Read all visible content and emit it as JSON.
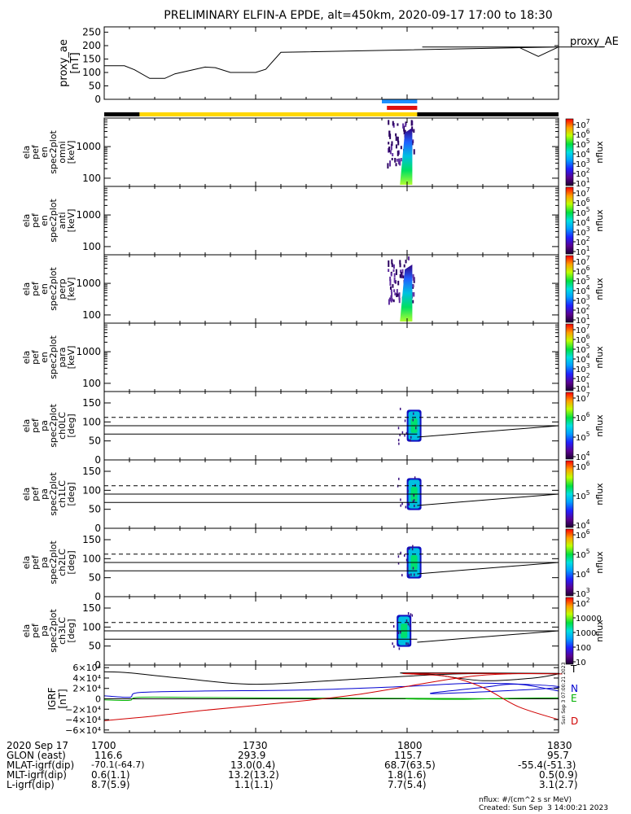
{
  "header": {
    "title": "PRELIMINARY ELFIN-A EPDE, alt=450km, 2020-09-17 17:00 to 18:30"
  },
  "colors": {
    "state_bar_sunlit": "#FFD700",
    "state_bar_eclipse": "#000000",
    "science_zone_blue": "#1E90FF",
    "science_zone_red": "#E01010",
    "igrf_T": "#000000",
    "igrf_N": "#0000D0",
    "igrf_E": "#00B000",
    "igrf_D": "#D00000"
  },
  "chart_data": [
    {
      "type": "line",
      "panel": "proxy_ae",
      "ylabel": [
        "proxy_ae",
        "[nT]"
      ],
      "legend": "proxy_AE",
      "ylim": [
        0,
        270
      ],
      "yticks": [
        "250",
        "200",
        "150",
        "100",
        "50",
        "0"
      ],
      "x": [
        1700,
        1704,
        1706,
        1709,
        1712,
        1714,
        1720,
        1722,
        1725,
        1730,
        1732,
        1735,
        1790,
        1794,
        1799,
        1803,
        1807,
        1812,
        1822,
        1826,
        1830
      ],
      "values": [
        125,
        125,
        110,
        78,
        78,
        95,
        120,
        118,
        100,
        100,
        112,
        175,
        195,
        195,
        195,
        195,
        195,
        195,
        195,
        160,
        195
      ]
    },
    {
      "type": "heatmap",
      "panel": "ela_pef_en_spec2plot_omni",
      "ylabel": [
        "ela",
        "pef",
        "en",
        "spec2plot",
        "omni",
        "[keV]"
      ],
      "yscale": "log",
      "yticks": [
        "1000",
        "100"
      ],
      "colorbar_label": "nflux",
      "colorbar_ticks": [
        "10^7",
        "10^6",
        "10^5",
        "10^4",
        "10^3",
        "10^2",
        "10^1"
      ],
      "active_x_range": [
        1756,
        1802
      ]
    },
    {
      "type": "heatmap",
      "panel": "ela_pef_en_spec2plot_anti",
      "ylabel": [
        "ela",
        "pef",
        "en",
        "spec2plot",
        "anti",
        "[keV]"
      ],
      "yscale": "log",
      "yticks": [
        "1000",
        "100"
      ],
      "colorbar_label": "nflux",
      "colorbar_ticks": [
        "10^7",
        "10^6",
        "10^5",
        "10^4",
        "10^3",
        "10^2",
        "10^1"
      ],
      "active_x_range": null
    },
    {
      "type": "heatmap",
      "panel": "ela_pef_en_spec2plot_perp",
      "ylabel": [
        "ela",
        "pef",
        "en",
        "spec2plot",
        "perp",
        "[keV]"
      ],
      "yscale": "log",
      "yticks": [
        "1000",
        "100"
      ],
      "colorbar_label": "nflux",
      "colorbar_ticks": [
        "10^7",
        "10^6",
        "10^5",
        "10^4",
        "10^3",
        "10^2",
        "10^1"
      ],
      "active_x_range": [
        1756,
        1802
      ]
    },
    {
      "type": "heatmap",
      "panel": "ela_pef_en_spec2plot_para",
      "ylabel": [
        "ela",
        "pef",
        "en",
        "spec2plot",
        "para",
        "[keV]"
      ],
      "yscale": "log",
      "yticks": [
        "1000",
        "100"
      ],
      "colorbar_label": "nflux",
      "colorbar_ticks": [
        "10^7",
        "10^6",
        "10^5",
        "10^4",
        "10^3",
        "10^2",
        "10^1"
      ],
      "active_x_range": null
    },
    {
      "type": "heatmap",
      "panel": "ela_pef_pa_spec2plot_ch0LC",
      "ylabel": [
        "ela",
        "pef",
        "pa",
        "spec2plot",
        "ch0LC",
        "[deg]"
      ],
      "yticks": [
        "150",
        "100",
        "50",
        "0"
      ],
      "ylim": [
        0,
        180
      ],
      "colorbar_label": "nflux",
      "colorbar_ticks": [
        "10^7",
        "10^6",
        "10^5",
        "10^4"
      ],
      "active_x_range": [
        1758,
        1802
      ]
    },
    {
      "type": "heatmap",
      "panel": "ela_pef_pa_spec2plot_ch1LC",
      "ylabel": [
        "ela",
        "pef",
        "pa",
        "spec2plot",
        "ch1LC",
        "[deg]"
      ],
      "yticks": [
        "150",
        "100",
        "50",
        "0"
      ],
      "ylim": [
        0,
        180
      ],
      "colorbar_label": "nflux",
      "colorbar_ticks": [
        "10^6",
        "10^5",
        "10^4"
      ],
      "active_x_range": [
        1758,
        1802
      ]
    },
    {
      "type": "heatmap",
      "panel": "ela_pef_pa_spec2plot_ch2LC",
      "ylabel": [
        "ela",
        "pef",
        "pa",
        "spec2plot",
        "ch2LC",
        "[deg]"
      ],
      "yticks": [
        "150",
        "100",
        "50",
        "0"
      ],
      "ylim": [
        0,
        180
      ],
      "colorbar_label": "nflux",
      "colorbar_ticks": [
        "10^6",
        "10^5",
        "10^4",
        "10^3"
      ],
      "active_x_range": [
        1758,
        1802
      ]
    },
    {
      "type": "heatmap",
      "panel": "ela_pef_pa_spec2plot_ch3LC",
      "ylabel": [
        "ela",
        "pef",
        "pa",
        "spec2plot",
        "ch3LC",
        "[deg]"
      ],
      "yticks": [
        "150",
        "100",
        "50",
        "0"
      ],
      "ylim": [
        0,
        180
      ],
      "colorbar_label": "nflux",
      "colorbar_ticks": [
        "10^2",
        "10000",
        "1000",
        "100",
        "10"
      ],
      "active_x_range": [
        1756,
        1802
      ]
    },
    {
      "type": "line",
      "panel": "IGRF",
      "ylabel": [
        "IGRF",
        "[nT]"
      ],
      "yticks": [
        "6×10⁴",
        "4×10⁴",
        "2×10⁴",
        "0",
        "−2×10⁴",
        "−4×10⁴",
        "−6×10⁴"
      ],
      "ylim": [
        -65000,
        65000
      ],
      "series": [
        {
          "name": "T",
          "x": [
            1700,
            1705,
            1715,
            1730,
            1750,
            1770,
            1790,
            1800,
            1805,
            1815,
            1825,
            1830
          ],
          "values": [
            52000,
            50000,
            40000,
            28000,
            38000,
            48000,
            49000,
            50000,
            47000,
            35000,
            40000,
            48000
          ]
        },
        {
          "name": "N",
          "x": [
            1700,
            1705,
            1707,
            1720,
            1740,
            1760,
            1775,
            1790,
            1805,
            1815,
            1822,
            1830
          ],
          "values": [
            6000,
            3000,
            12000,
            15000,
            17000,
            24000,
            30000,
            22000,
            10000,
            22000,
            28000,
            15000
          ]
        },
        {
          "name": "E",
          "x": [
            1700,
            1705,
            1707,
            1720,
            1740,
            1760,
            1780,
            1800,
            1810,
            1820,
            1830
          ],
          "values": [
            -2000,
            -3000,
            3000,
            2500,
            1500,
            1000,
            0,
            0,
            -1000,
            1000,
            2000
          ]
        },
        {
          "name": "D",
          "x": [
            1700,
            1710,
            1720,
            1735,
            1750,
            1770,
            1780,
            1790,
            1800,
            1808,
            1815,
            1822,
            1830
          ],
          "values": [
            -42000,
            -33000,
            -22000,
            -8000,
            8000,
            40000,
            48000,
            48000,
            49000,
            43000,
            22000,
            -15000,
            -40000
          ]
        }
      ]
    }
  ],
  "xaxis": {
    "labels": [
      "2020 Sep 17",
      "GLON (east)",
      "MLAT-igrf(dip)",
      "MLT-igrf(dip)",
      "L-igrf(dip)"
    ],
    "columns": [
      {
        "time": 1700,
        "values": [
          "1700",
          "116.6",
          "-70.1(-64.7)",
          "0.6(1.1)",
          "8.7(5.9)"
        ]
      },
      {
        "time": 1730,
        "values": [
          "1730",
          "293.9",
          "13.0(0.4)",
          "13.2(13.2)",
          "1.1(1.1)"
        ]
      },
      {
        "time": 1800,
        "values": [
          "1800",
          "115.7",
          "68.7(63.5)",
          "1.8(1.6)",
          "7.7(5.4)"
        ]
      },
      {
        "time": 1830,
        "values": [
          "1830",
          "95.7",
          "-55.4(-51.3)",
          "0.5(0.9)",
          "3.1(2.7)"
        ]
      }
    ]
  },
  "footer": {
    "units": "nflux: #/(cm^2 s sr MeV)",
    "created": "Created: Sun Sep  3 14:00:21 2023",
    "side_stamp": "Sun Sep  3 07:00:21 2023"
  }
}
